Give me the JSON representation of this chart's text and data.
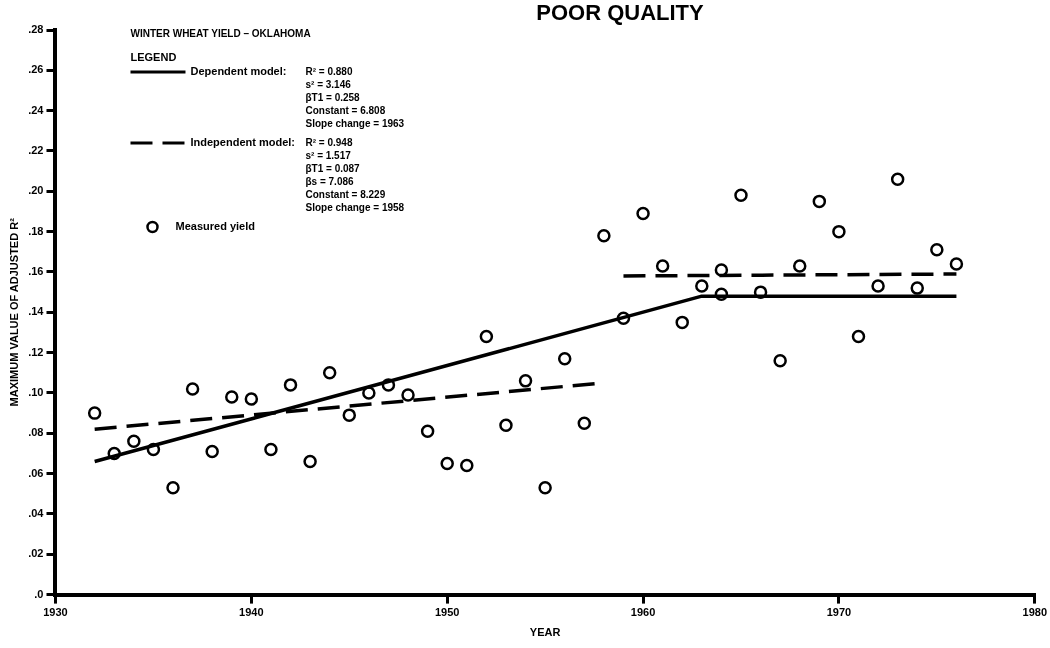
{
  "chart_data": {
    "type": "scatter",
    "title": "POOR QUALITY",
    "subtitle": "WINTER WHEAT YIELD – OKLAHOMA",
    "xlabel": "YEAR",
    "ylabel": "MAXIMUM VALUE OF ADJUSTED R²",
    "legend_title": "LEGEND",
    "legend": "top left",
    "grid": false,
    "xlim": [
      1930,
      1980
    ],
    "xticks": [
      1930,
      1940,
      1950,
      1960,
      1970,
      1980
    ],
    "ylim": [
      0,
      0.28
    ],
    "yticks": [
      {
        "value": 0,
        "label": ".0"
      },
      {
        "value": 0.02,
        "label": ".02"
      },
      {
        "value": 0.04,
        "label": ".04"
      },
      {
        "value": 0.06,
        "label": ".06"
      },
      {
        "value": 0.08,
        "label": ".08"
      },
      {
        "value": 0.1,
        "label": ".10"
      },
      {
        "value": 0.12,
        "label": ".12"
      },
      {
        "value": 0.14,
        "label": ".14"
      },
      {
        "value": 0.16,
        "label": ".16"
      },
      {
        "value": 0.18,
        "label": ".18"
      },
      {
        "value": 0.2,
        "label": ".20"
      },
      {
        "value": 0.22,
        "label": ".22"
      },
      {
        "value": 0.24,
        "label": ".24"
      },
      {
        "value": 0.26,
        "label": ".26"
      },
      {
        "value": 0.28,
        "label": ".28"
      }
    ],
    "annotations": [
      "R² = 0.880\ns² = 3.146\nβT1 = 0.258\nConstant = 6.808\nSlope change = 1963",
      "R² = 0.948\ns² = 1.517\nβT1 = 0.087\nβs = 7.086\nConstant = 8.229\nSlope change = 1958"
    ],
    "series": [
      {
        "name": "Dependent model:",
        "type": "line",
        "line_style": "solid",
        "marker": "none",
        "color": "#000000",
        "x": [
          1932,
          1963,
          1976
        ],
        "values": [
          0.066,
          0.148,
          0.148
        ]
      },
      {
        "name": "Independent model:",
        "type": "line",
        "line_style": "dashed",
        "marker": "none",
        "color": "#000000",
        "x": [
          1932,
          1958,
          1958.5,
          1959,
          1976
        ],
        "values": [
          0.082,
          0.105,
          null,
          0.158,
          0.159
        ]
      },
      {
        "name": "Measured yield",
        "type": "scatter",
        "marker": "circle",
        "color": "#000000",
        "x": [
          1932,
          1933,
          1934,
          1935,
          1936,
          1937,
          1938,
          1939,
          1940,
          1941,
          1942,
          1943,
          1944,
          1945,
          1946,
          1947,
          1948,
          1949,
          1950,
          1951,
          1952,
          1953,
          1954,
          1955,
          1956,
          1957,
          1958,
          1959,
          1960,
          1961,
          1962,
          1963,
          1964,
          1964,
          1965,
          1966,
          1967,
          1968,
          1969,
          1970,
          1971,
          1972,
          1973,
          1974,
          1975,
          1976
        ],
        "values": [
          0.09,
          0.07,
          0.076,
          0.072,
          0.053,
          0.102,
          0.071,
          0.098,
          0.097,
          0.072,
          0.104,
          0.066,
          0.11,
          0.089,
          0.1,
          0.104,
          0.099,
          0.081,
          0.065,
          0.064,
          0.128,
          0.084,
          0.106,
          0.053,
          0.117,
          0.085,
          0.178,
          0.137,
          0.189,
          0.163,
          0.135,
          0.153,
          0.161,
          0.149,
          0.198,
          0.15,
          0.116,
          0.163,
          0.195,
          0.18,
          0.128,
          0.153,
          0.206,
          0.152,
          0.171,
          0.164
        ]
      }
    ]
  }
}
